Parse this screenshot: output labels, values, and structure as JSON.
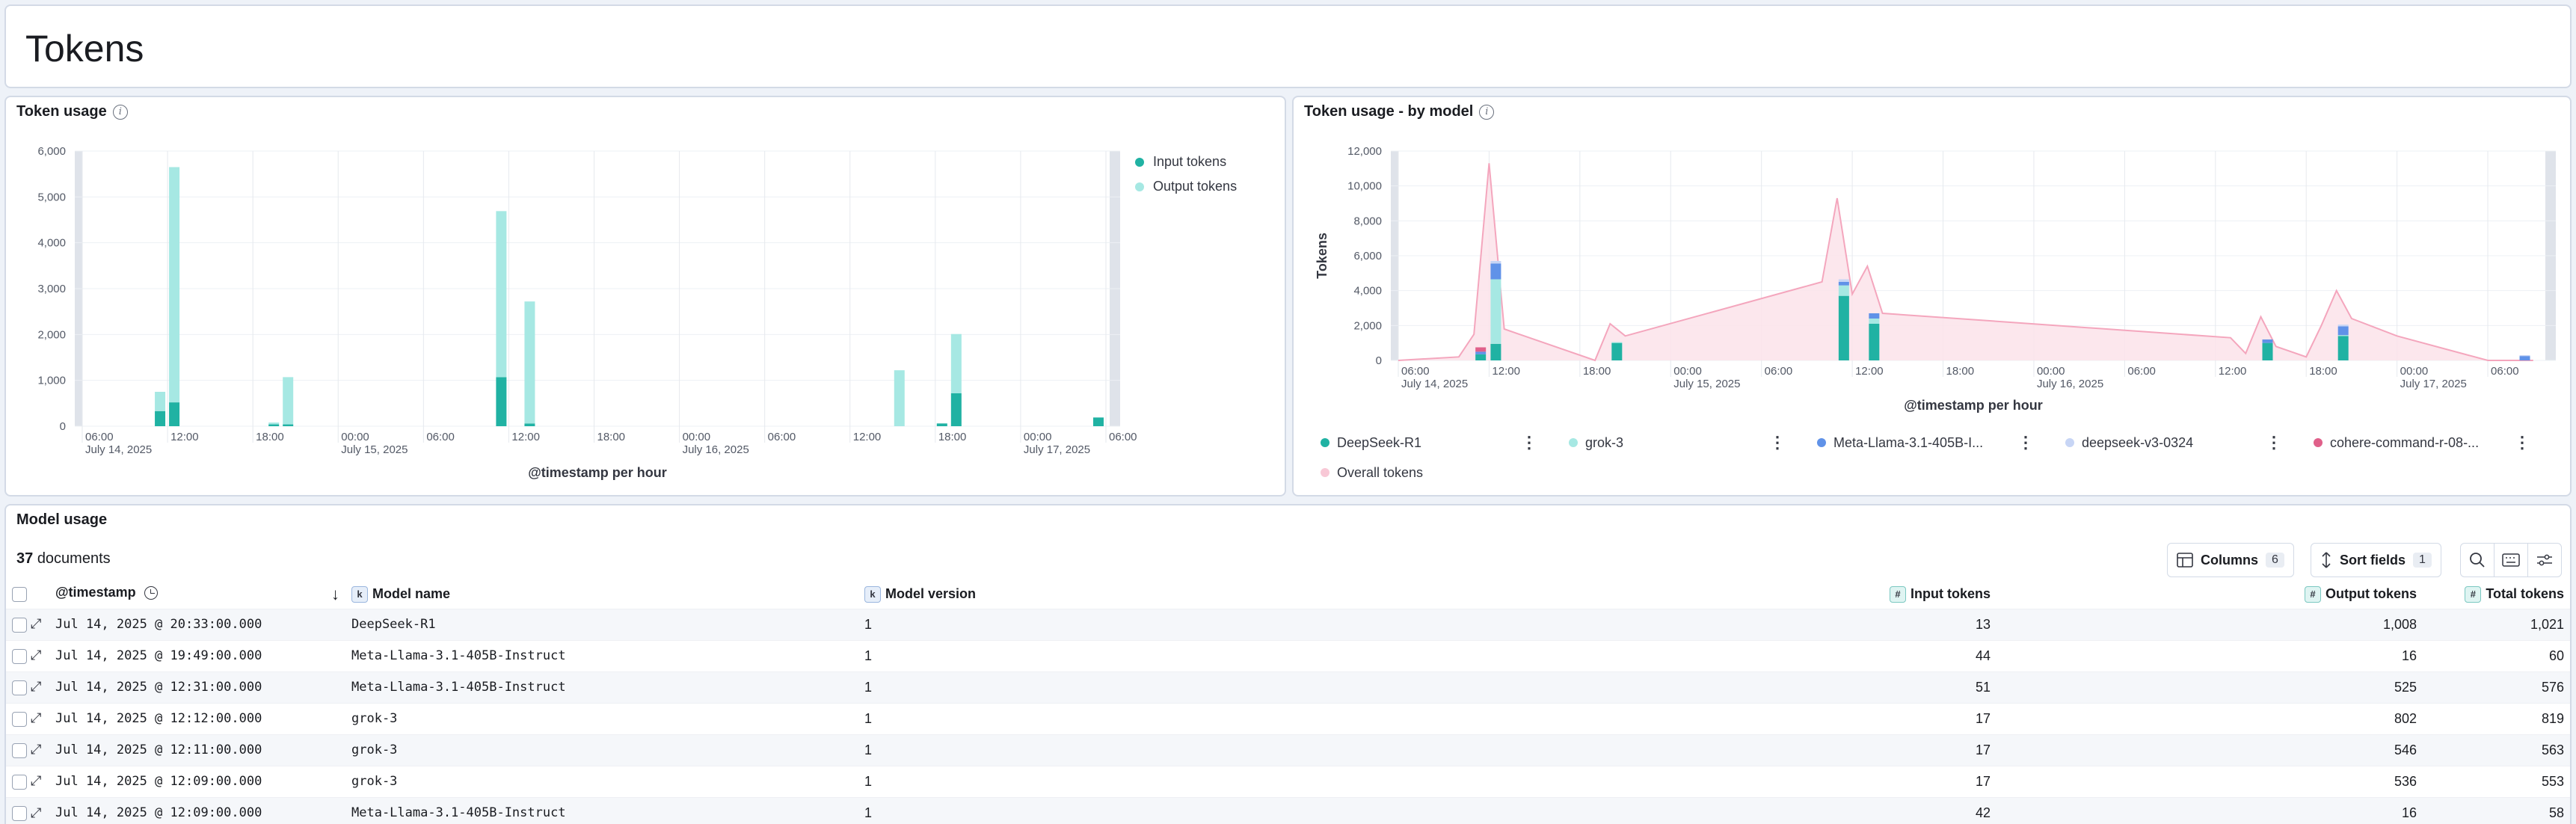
{
  "page": {
    "title": "Tokens"
  },
  "token_usage": {
    "title": "Token usage",
    "x_axis_title": "@timestamp per hour",
    "legend": [
      {
        "label": "Input tokens",
        "color": "#20b2a3"
      },
      {
        "label": "Output tokens",
        "color": "#a6e8e3"
      }
    ],
    "chart_data": {
      "type": "bar",
      "stacked": true,
      "ylim": [
        0,
        6000
      ],
      "yticks": [
        "0",
        "1,000",
        "2,000",
        "3,000",
        "4,000",
        "5,000",
        "6,000"
      ],
      "xticks": [
        {
          "t": 0,
          "label": "06:00",
          "date": "July 14, 2025"
        },
        {
          "t": 6,
          "label": "12:00"
        },
        {
          "t": 12,
          "label": "18:00"
        },
        {
          "t": 18,
          "label": "00:00",
          "date": "July 15, 2025"
        },
        {
          "t": 24,
          "label": "06:00"
        },
        {
          "t": 30,
          "label": "12:00"
        },
        {
          "t": 36,
          "label": "18:00"
        },
        {
          "t": 42,
          "label": "00:00",
          "date": "July 16, 2025"
        },
        {
          "t": 48,
          "label": "06:00"
        },
        {
          "t": 54,
          "label": "12:00"
        },
        {
          "t": 60,
          "label": "18:00"
        },
        {
          "t": 66,
          "label": "00:00",
          "date": "July 17, 2025"
        },
        {
          "t": 72,
          "label": "06:00"
        }
      ],
      "series": [
        {
          "name": "Input tokens",
          "points": [
            [
              5,
              330
            ],
            [
              6,
              520
            ],
            [
              13,
              40
            ],
            [
              14,
              40
            ],
            [
              29,
              1070
            ],
            [
              31,
              60
            ],
            [
              57,
              0
            ],
            [
              60,
              60
            ],
            [
              61,
              720
            ],
            [
              71,
              190
            ]
          ]
        },
        {
          "name": "Output tokens",
          "points": [
            [
              5,
              420
            ],
            [
              6,
              5130
            ],
            [
              13,
              40
            ],
            [
              14,
              1030
            ],
            [
              29,
              3620
            ],
            [
              31,
              2660
            ],
            [
              57,
              1220
            ],
            [
              60,
              0
            ],
            [
              61,
              1290
            ],
            [
              71,
              0
            ]
          ]
        }
      ]
    }
  },
  "token_usage_by_model": {
    "title": "Token usage - by model",
    "y_axis_title": "Tokens",
    "x_axis_title": "@timestamp per hour",
    "legend": [
      {
        "label": "DeepSeek-R1",
        "color": "#20b2a3"
      },
      {
        "label": "grok-3",
        "color": "#a6e8e3"
      },
      {
        "label": "Meta-Llama-3.1-405B-I...",
        "color": "#6092e8"
      },
      {
        "label": "deepseek-v3-0324",
        "color": "#c7d5f5"
      },
      {
        "label": "cohere-command-r-08-...",
        "color": "#e0608a"
      },
      {
        "label": "Overall tokens",
        "color": "#f8c8d6"
      }
    ],
    "chart_data": {
      "type": "area",
      "ylim": [
        0,
        12000
      ],
      "yticks": [
        "0",
        "2,000",
        "4,000",
        "6,000",
        "8,000",
        "10,000",
        "12,000"
      ],
      "xticks": [
        {
          "t": 0,
          "label": "06:00",
          "date": "July 14, 2025"
        },
        {
          "t": 6,
          "label": "12:00"
        },
        {
          "t": 12,
          "label": "18:00"
        },
        {
          "t": 18,
          "label": "00:00",
          "date": "July 15, 2025"
        },
        {
          "t": 24,
          "label": "06:00"
        },
        {
          "t": 30,
          "label": "12:00"
        },
        {
          "t": 36,
          "label": "18:00"
        },
        {
          "t": 42,
          "label": "00:00",
          "date": "July 16, 2025"
        },
        {
          "t": 48,
          "label": "06:00"
        },
        {
          "t": 54,
          "label": "12:00"
        },
        {
          "t": 60,
          "label": "18:00"
        },
        {
          "t": 66,
          "label": "00:00",
          "date": "July 17, 2025"
        },
        {
          "t": 72,
          "label": "06:00"
        }
      ],
      "overall_tokens": [
        [
          0,
          0
        ],
        [
          4,
          200
        ],
        [
          5,
          1500
        ],
        [
          6,
          11300
        ],
        [
          7,
          1800
        ],
        [
          13,
          0
        ],
        [
          14,
          2100
        ],
        [
          15,
          1400
        ],
        [
          28,
          4500
        ],
        [
          29,
          9300
        ],
        [
          30,
          3800
        ],
        [
          31,
          5400
        ],
        [
          32,
          2700
        ],
        [
          55,
          1300
        ],
        [
          56,
          400
        ],
        [
          57,
          2500
        ],
        [
          58,
          800
        ],
        [
          60,
          200
        ],
        [
          61,
          2000
        ],
        [
          62,
          4000
        ],
        [
          63,
          2400
        ],
        [
          66,
          1400
        ],
        [
          72,
          0
        ],
        [
          75,
          0
        ]
      ],
      "bars": [
        {
          "t": 5,
          "segments": [
            [
              "DeepSeek-R1",
              350
            ],
            [
              "Meta-Llama-3.1-405B-I...",
              150
            ],
            [
              "cohere-command-r-08-...",
              250
            ]
          ]
        },
        {
          "t": 6,
          "segments": [
            [
              "DeepSeek-R1",
              950
            ],
            [
              "grok-3",
              3700
            ],
            [
              "Meta-Llama-3.1-405B-I...",
              900
            ],
            [
              "deepseek-v3-0324",
              150
            ]
          ]
        },
        {
          "t": 14,
          "segments": [
            [
              "DeepSeek-R1",
              1000
            ],
            [
              "grok-3",
              50
            ]
          ]
        },
        {
          "t": 29,
          "segments": [
            [
              "DeepSeek-R1",
              3700
            ],
            [
              "grok-3",
              600
            ],
            [
              "Meta-Llama-3.1-405B-I...",
              200
            ],
            [
              "deepseek-v3-0324",
              150
            ]
          ]
        },
        {
          "t": 31,
          "segments": [
            [
              "DeepSeek-R1",
              2100
            ],
            [
              "grok-3",
              300
            ],
            [
              "Meta-Llama-3.1-405B-I...",
              300
            ]
          ]
        },
        {
          "t": 57,
          "segments": [
            [
              "DeepSeek-R1",
              1000
            ],
            [
              "Meta-Llama-3.1-405B-I...",
              200
            ]
          ]
        },
        {
          "t": 62,
          "segments": [
            [
              "DeepSeek-R1",
              1400
            ],
            [
              "grok-3",
              50
            ],
            [
              "Meta-Llama-3.1-405B-I...",
              500
            ],
            [
              "deepseek-v3-0324",
              100
            ]
          ]
        },
        {
          "t": 74,
          "segments": [
            [
              "Meta-Llama-3.1-405B-I...",
              250
            ],
            [
              "deepseek-v3-0324",
              50
            ]
          ]
        }
      ]
    }
  },
  "model_usage": {
    "title": "Model usage",
    "doc_count": "37",
    "doc_label": "documents",
    "columns_button": {
      "label": "Columns",
      "count": "6"
    },
    "sort_button": {
      "label": "Sort fields",
      "count": "1"
    },
    "headers": {
      "timestamp": "@timestamp",
      "model_name": "Model name",
      "model_version": "Model version",
      "input_tokens": "Input tokens",
      "output_tokens": "Output tokens",
      "total_tokens": "Total tokens"
    },
    "type_badges": {
      "keyword": "k",
      "number": "#"
    },
    "rows": [
      {
        "timestamp": "Jul 14, 2025 @ 20:33:00.000",
        "model_name": "DeepSeek-R1",
        "model_version": "1",
        "input_tokens": "13",
        "output_tokens": "1,008",
        "total_tokens": "1,021"
      },
      {
        "timestamp": "Jul 14, 2025 @ 19:49:00.000",
        "model_name": "Meta-Llama-3.1-405B-Instruct",
        "model_version": "1",
        "input_tokens": "44",
        "output_tokens": "16",
        "total_tokens": "60"
      },
      {
        "timestamp": "Jul 14, 2025 @ 12:31:00.000",
        "model_name": "Meta-Llama-3.1-405B-Instruct",
        "model_version": "1",
        "input_tokens": "51",
        "output_tokens": "525",
        "total_tokens": "576"
      },
      {
        "timestamp": "Jul 14, 2025 @ 12:12:00.000",
        "model_name": "grok-3",
        "model_version": "1",
        "input_tokens": "17",
        "output_tokens": "802",
        "total_tokens": "819"
      },
      {
        "timestamp": "Jul 14, 2025 @ 12:11:00.000",
        "model_name": "grok-3",
        "model_version": "1",
        "input_tokens": "17",
        "output_tokens": "546",
        "total_tokens": "563"
      },
      {
        "timestamp": "Jul 14, 2025 @ 12:09:00.000",
        "model_name": "grok-3",
        "model_version": "1",
        "input_tokens": "17",
        "output_tokens": "536",
        "total_tokens": "553"
      },
      {
        "timestamp": "Jul 14, 2025 @ 12:09:00.000",
        "model_name": "Meta-Llama-3.1-405B-Instruct",
        "model_version": "1",
        "input_tokens": "42",
        "output_tokens": "16",
        "total_tokens": "58"
      }
    ]
  }
}
